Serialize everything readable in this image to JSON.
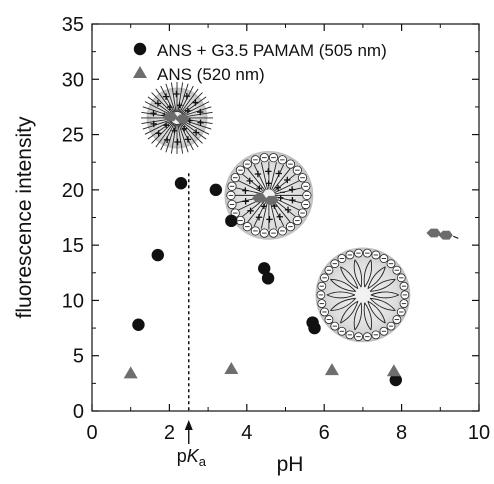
{
  "chart_data": {
    "type": "scatter",
    "xlabel": "pH",
    "ylabel": "fluorescence intensity",
    "xlim": [
      0,
      10
    ],
    "ylim": [
      0,
      35
    ],
    "x_ticks": [
      0,
      2,
      4,
      6,
      8,
      10
    ],
    "y_ticks": [
      0,
      5,
      10,
      15,
      20,
      25,
      30,
      35
    ],
    "grid": false,
    "legend_position": "top-right",
    "series": [
      {
        "name": "ANS + G3.5 PAMAM (505 nm)",
        "marker": "circle",
        "color": "#111111",
        "points": [
          {
            "x": 1.2,
            "y": 7.8
          },
          {
            "x": 1.7,
            "y": 14.1
          },
          {
            "x": 2.3,
            "y": 20.6
          },
          {
            "x": 3.2,
            "y": 20.0
          },
          {
            "x": 3.6,
            "y": 17.2
          },
          {
            "x": 4.45,
            "y": 12.9
          },
          {
            "x": 4.55,
            "y": 12.0
          },
          {
            "x": 5.7,
            "y": 8.0
          },
          {
            "x": 5.75,
            "y": 7.5
          },
          {
            "x": 7.85,
            "y": 2.8
          }
        ]
      },
      {
        "name": "ANS (520 nm)",
        "marker": "triangle",
        "color": "#6e6e6e",
        "points": [
          {
            "x": 1.0,
            "y": 3.4
          },
          {
            "x": 3.6,
            "y": 3.8
          },
          {
            "x": 6.2,
            "y": 3.7
          },
          {
            "x": 7.8,
            "y": 3.6
          }
        ]
      }
    ],
    "pka_marker": {
      "x": 2.5,
      "label_prefix": "p",
      "label_italic": "K",
      "label_subscript": "a"
    },
    "illustrations": [
      {
        "name": "dendrimer-bound-ans",
        "pH": 2.3,
        "y": 26.5
      },
      {
        "name": "dendrimer-partial-charge",
        "pH": 4.7,
        "y": 19.5
      },
      {
        "name": "dendrimer-deprotonated",
        "pH": 7.0,
        "y": 10.5
      },
      {
        "name": "free-ans-molecule",
        "pH": 9.0,
        "y": 15.8
      }
    ]
  }
}
